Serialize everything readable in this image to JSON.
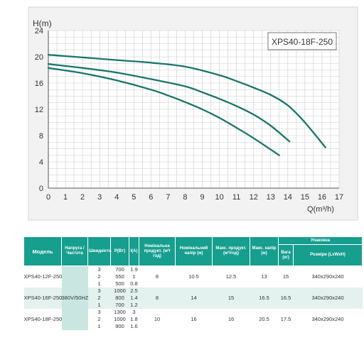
{
  "chart_data": {
    "type": "line",
    "title": "XPS40-18F-250",
    "ylabel": "H(m)",
    "xlabel": "Q(m³/h)",
    "xlim": [
      0,
      17
    ],
    "ylim": [
      0,
      24
    ],
    "x_ticks": [
      "0",
      "1",
      "2",
      "3",
      "4",
      "5",
      "6",
      "7",
      "8",
      "9",
      "10",
      "11",
      "12",
      "13",
      "14",
      "15",
      "16",
      "17"
    ],
    "y_ticks": [
      "0",
      "4",
      "8",
      "12",
      "16",
      "20",
      "24"
    ],
    "grid": true,
    "line_color": "#17766a",
    "series": [
      {
        "x": [
          0,
          2,
          4,
          6,
          8,
          10,
          11,
          12,
          13,
          14,
          15,
          16.2
        ],
        "y": [
          20.3,
          19.9,
          19.5,
          19.1,
          18.5,
          17.2,
          16.3,
          15.3,
          14.2,
          12.6,
          10.0,
          6.2
        ]
      },
      {
        "x": [
          0,
          2,
          4,
          6,
          8,
          9,
          10,
          11,
          12,
          13,
          14.1
        ],
        "y": [
          18.9,
          18.3,
          17.6,
          16.6,
          15.5,
          14.6,
          13.6,
          12.5,
          11.2,
          9.5,
          7.1
        ]
      },
      {
        "x": [
          0,
          2,
          4,
          6,
          7,
          8,
          9,
          10,
          11,
          12,
          13.5
        ],
        "y": [
          18.3,
          17.5,
          16.4,
          15.0,
          14.1,
          13.1,
          12.0,
          10.7,
          9.2,
          7.6,
          5.0
        ]
      }
    ]
  },
  "table": {
    "headers": {
      "model": "Модель",
      "voltage": "Напруга /Частота",
      "speed": "Швидкість",
      "power": "P(Вт)",
      "current": "I(A)",
      "nominal_flow": "Номінальна продукт. (м³/год)",
      "nominal_head": "Номінальний напір (м)",
      "max_flow": "Макс. продукт. (м³/год)",
      "max_head": "Макс. напір (м)",
      "packing": "Упаковка",
      "weight": "Вага (кг)",
      "dimensions": "Розміри (LxWxH)"
    },
    "voltage": "380V/50HZ",
    "groups": [
      {
        "model": "XPS40-12F-250",
        "nominal_flow": "8",
        "nominal_head": "10.5",
        "max_flow": "12.5",
        "max_head": "13",
        "weight": "15",
        "dimensions": "340x290x240",
        "rows": [
          {
            "speed": "3",
            "power": "700",
            "current": "1.9"
          },
          {
            "speed": "2",
            "power": "550",
            "current": "1"
          },
          {
            "speed": "1",
            "power": "500",
            "current": "0.8"
          }
        ]
      },
      {
        "model": "XPS40-16F-250",
        "nominal_flow": "8",
        "nominal_head": "14",
        "max_flow": "15",
        "max_head": "16.5",
        "weight": "16.5",
        "dimensions": "340x290x240",
        "rows": [
          {
            "speed": "3",
            "power": "1000",
            "current": "2.5"
          },
          {
            "speed": "2",
            "power": "800",
            "current": "1.4"
          },
          {
            "speed": "1",
            "power": "700",
            "current": "1.2"
          }
        ]
      },
      {
        "model": "XPS40-18F-250",
        "nominal_flow": "10",
        "nominal_head": "16",
        "max_flow": "16",
        "max_head": "20.5",
        "weight": "17.5",
        "dimensions": "340x290x240",
        "rows": [
          {
            "speed": "3",
            "power": "1300",
            "current": "3"
          },
          {
            "speed": "2",
            "power": "1000",
            "current": "1.8"
          },
          {
            "speed": "1",
            "power": "900",
            "current": "1.6"
          }
        ]
      }
    ]
  }
}
